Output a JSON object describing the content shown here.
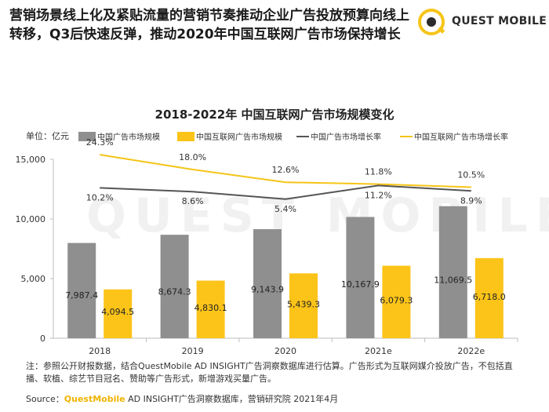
{
  "headline": "营销场景线上化及紧贴流量的营销节奏推动企业广告投放预算向线上转移，Q3后快速反弹，推动2020年中国互联网广告市场保持增长",
  "logo": {
    "text": "QUEST MOBILE",
    "icon": "questmobile-logo-icon"
  },
  "watermark": "QUEST MOBILE",
  "footnote": "注：参照公开财报数据，结合QuestMobile AD INSIGHT广告洞察数据库进行估算。广告形式为互联网媒介投放广告，不包括直播、软植、综艺节目冠名、赞助等广告形式，新增游戏买量广告。",
  "source": {
    "label": "Source：",
    "brand": "QuestMobile",
    "rest": " AD INSIGHT广告洞察数据库，营销研究院 2021年4月"
  },
  "colors": {
    "gray_bar": "#8f8f8f",
    "yellow_bar": "#fcc419",
    "gray_line": "#555555",
    "yellow_line": "#f5c518"
  },
  "chart_data": {
    "type": "bar",
    "title": "2018-2022年 中国互联网广告市场规模变化",
    "unit_label": "单位：亿元",
    "categories": [
      "2018",
      "2019",
      "2020",
      "2021e",
      "2022e"
    ],
    "ylim": [
      0,
      15000
    ],
    "yticks": [
      0,
      5000,
      10000,
      15000
    ],
    "ytick_labels": [
      "0",
      "5,000",
      "10,000",
      "15,000"
    ],
    "legend_placement": "top",
    "series": [
      {
        "name": "中国广告市场规模",
        "kind": "bar",
        "values": [
          7987.4,
          8674.3,
          9143.9,
          10167.9,
          11069.5
        ],
        "labels": [
          "7,987.4",
          "8,674.3",
          "9,143.9",
          "10,167.9",
          "11,069.5"
        ]
      },
      {
        "name": "中国互联网广告市场规模",
        "kind": "bar",
        "values": [
          4094.5,
          4830.1,
          5439.3,
          6079.3,
          6718.0
        ],
        "labels": [
          "4,094.5",
          "4,830.1",
          "5,439.3",
          "6,079.3",
          "6,718.0"
        ]
      },
      {
        "name": "中国广告市场增长率",
        "kind": "line",
        "values": [
          10.2,
          8.6,
          5.4,
          11.2,
          8.9
        ],
        "labels": [
          "10.2%",
          "8.6%",
          "5.4%",
          "11.2%",
          "8.9%"
        ]
      },
      {
        "name": "中国互联网广告市场增长率",
        "kind": "line",
        "values": [
          24.3,
          18.0,
          12.6,
          11.8,
          10.5
        ],
        "labels": [
          "24.3%",
          "18.0%",
          "12.6%",
          "11.8%",
          "10.5%"
        ]
      }
    ]
  }
}
